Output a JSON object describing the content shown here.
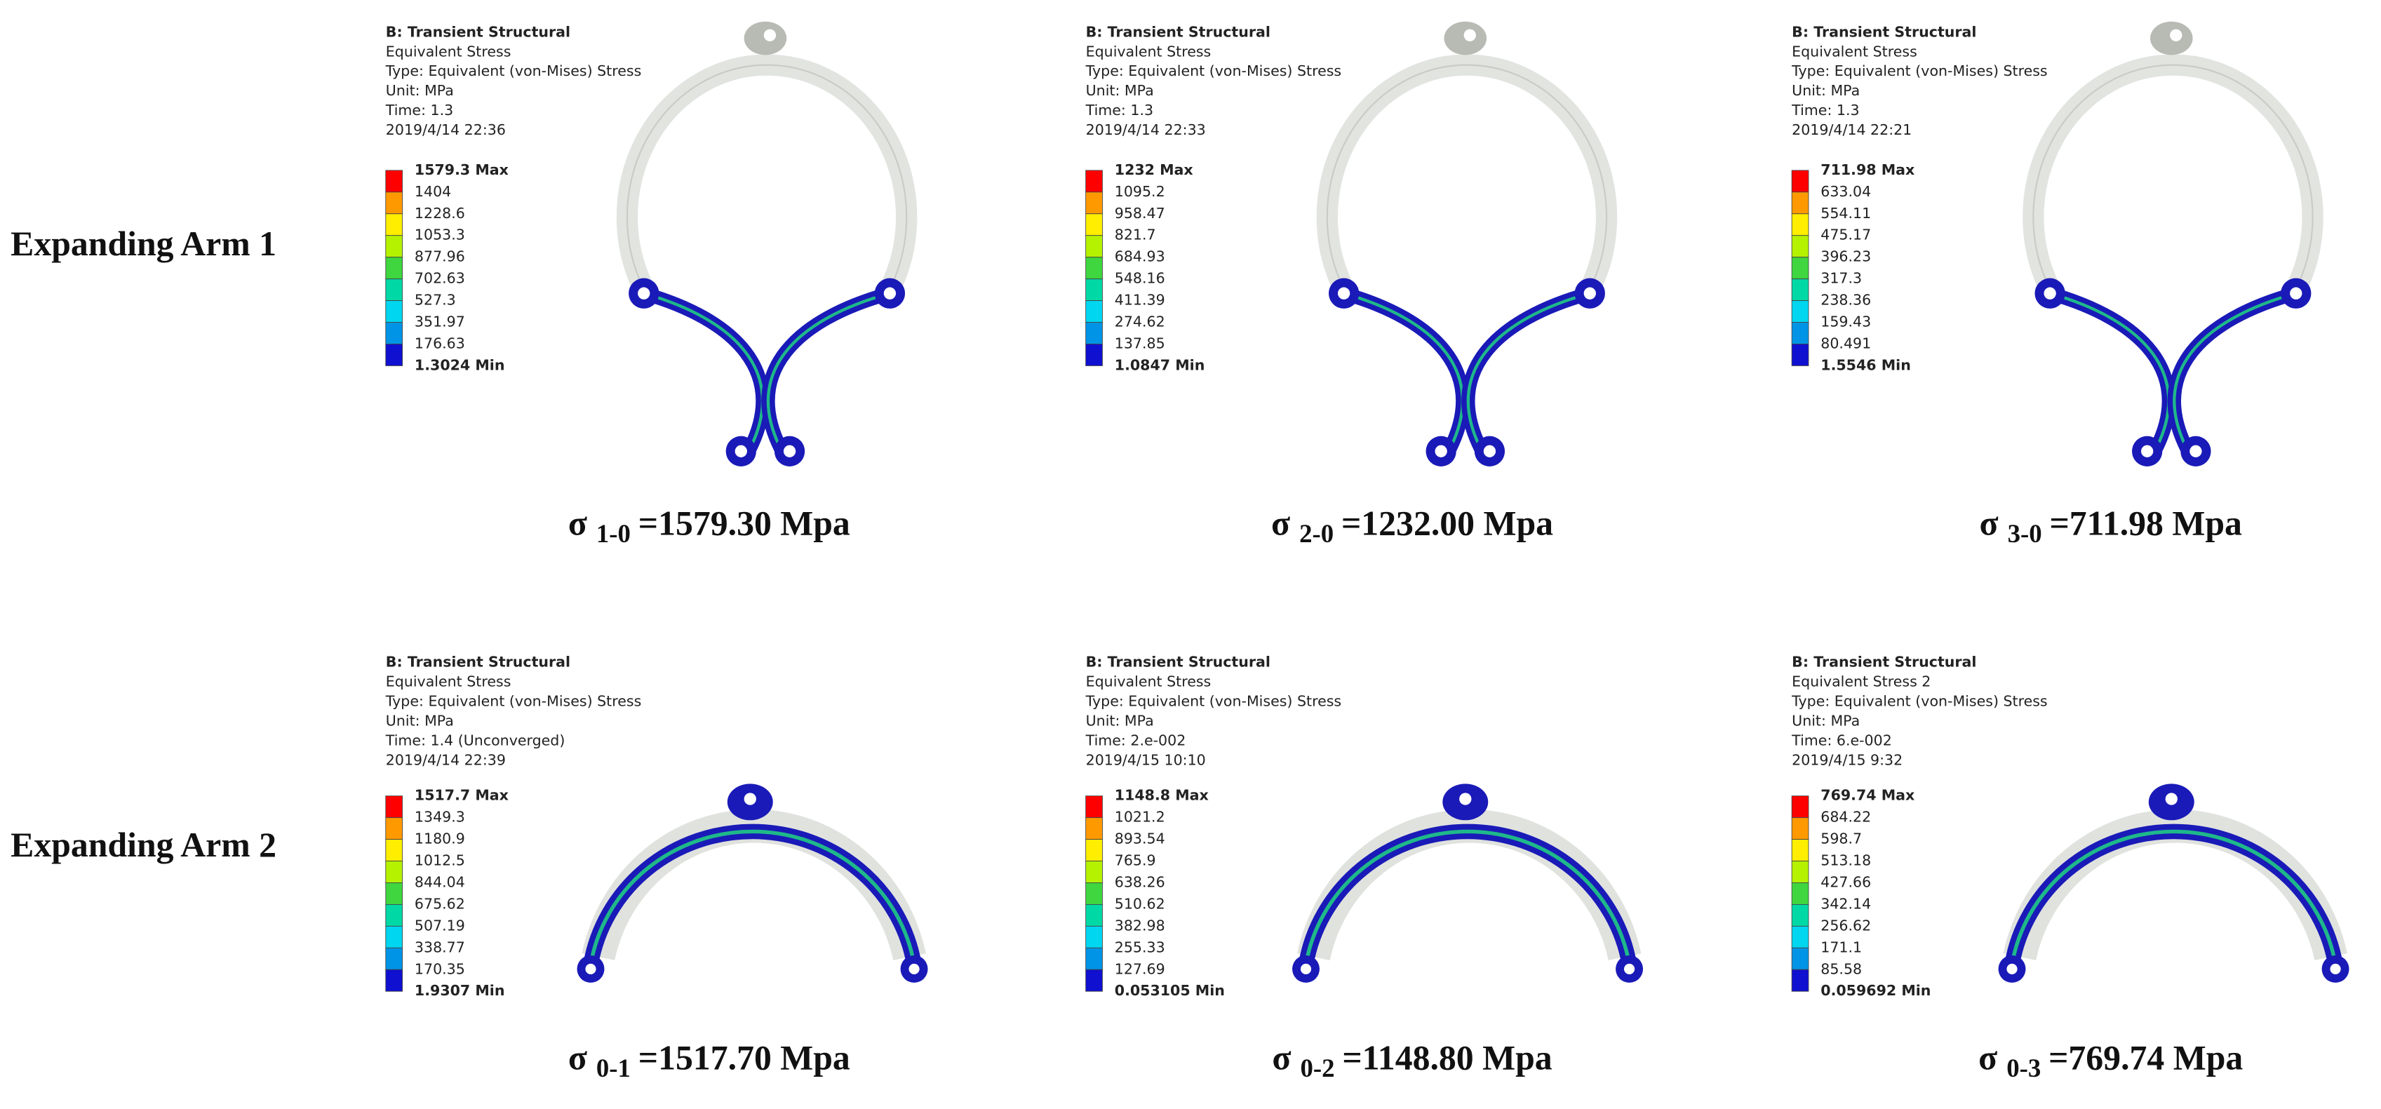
{
  "rows": [
    {
      "label": "Expanding Arm 1",
      "panels": [
        {
          "header": [
            "B: Transient Structural",
            "Equivalent Stress",
            "Type: Equivalent (von-Mises) Stress",
            "Unit: MPa",
            "Time: 1.3",
            "2019/4/14 22:36"
          ],
          "legend": [
            "1579.3 Max",
            "1404",
            "1228.6",
            "1053.3",
            "877.96",
            "702.63",
            "527.3",
            "351.97",
            "176.63",
            "1.3024 Min"
          ],
          "caption": {
            "symbol": "σ",
            "subscript": "1-0",
            "value": "=1579.30 Mpa"
          }
        },
        {
          "header": [
            "B: Transient Structural",
            "Equivalent Stress",
            "Type: Equivalent (von-Mises) Stress",
            "Unit: MPa",
            "Time: 1.3",
            "2019/4/14 22:33"
          ],
          "legend": [
            "1232 Max",
            "1095.2",
            "958.47",
            "821.7",
            "684.93",
            "548.16",
            "411.39",
            "274.62",
            "137.85",
            "1.0847 Min"
          ],
          "caption": {
            "symbol": "σ",
            "subscript": "2-0",
            "value": "=1232.00 Mpa"
          }
        },
        {
          "header": [
            "B: Transient Structural",
            "Equivalent Stress",
            "Type: Equivalent (von-Mises) Stress",
            "Unit: MPa",
            "Time: 1.3",
            "2019/4/14 22:21"
          ],
          "legend": [
            "711.98 Max",
            "633.04",
            "554.11",
            "475.17",
            "396.23",
            "317.3",
            "238.36",
            "159.43",
            "80.491",
            "1.5546 Min"
          ],
          "caption": {
            "symbol": "σ",
            "subscript": "3-0",
            "value": "=711.98 Mpa"
          }
        }
      ]
    },
    {
      "label": "Expanding Arm 2",
      "panels": [
        {
          "header": [
            "B: Transient Structural",
            "Equivalent Stress",
            "Type: Equivalent (von-Mises) Stress",
            "Unit: MPa",
            "Time: 1.4 (Unconverged)",
            "2019/4/14 22:39"
          ],
          "legend": [
            "1517.7 Max",
            "1349.3",
            "1180.9",
            "1012.5",
            "844.04",
            "675.62",
            "507.19",
            "338.77",
            "170.35",
            "1.9307 Min"
          ],
          "caption": {
            "symbol": "σ",
            "subscript": "0-1",
            "value": "=1517.70 Mpa"
          }
        },
        {
          "header": [
            "B: Transient Structural",
            "Equivalent Stress",
            "Type: Equivalent (von-Mises) Stress",
            "Unit: MPa",
            "Time: 2.e-002",
            "2019/4/15 10:10"
          ],
          "legend": [
            "1148.8 Max",
            "1021.2",
            "893.54",
            "765.9",
            "638.26",
            "510.62",
            "382.98",
            "255.33",
            "127.69",
            "0.053105 Min"
          ],
          "caption": {
            "symbol": "σ",
            "subscript": "0-2",
            "value": "=1148.80 Mpa"
          }
        },
        {
          "header": [
            "B: Transient Structural",
            "Equivalent Stress 2",
            "Type: Equivalent (von-Mises) Stress",
            "Unit: MPa",
            "Time: 6.e-002",
            "2019/4/15 9:32"
          ],
          "legend": [
            "769.74 Max",
            "684.22",
            "598.7",
            "513.18",
            "427.66",
            "342.14",
            "256.62",
            "171.1",
            "85.58",
            "0.059692 Min"
          ],
          "caption": {
            "symbol": "σ",
            "subscript": "0-3",
            "value": "=769.74 Mpa"
          }
        }
      ]
    }
  ]
}
